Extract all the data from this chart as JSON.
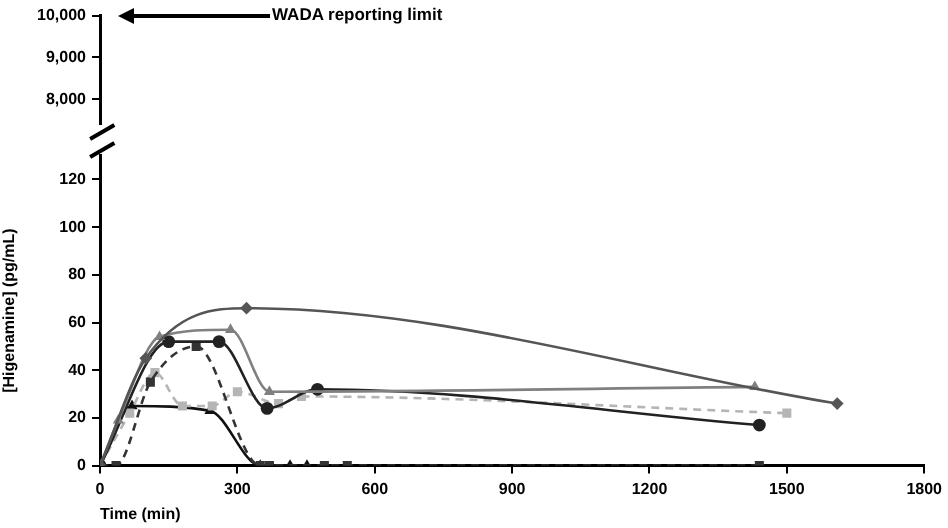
{
  "chart_data": [
    {
      "type": "line",
      "xlim": [
        0,
        1800
      ],
      "ylim": [
        7400,
        10000
      ],
      "yticks": [
        {
          "value": 8000,
          "label": "8,000"
        },
        {
          "value": 9000,
          "label": "9,000"
        },
        {
          "value": 10000,
          "label": "10,000"
        }
      ],
      "tick_labels": "y",
      "grid": false,
      "legend": false,
      "annotations": [
        "WADA reporting limit"
      ]
    },
    {
      "type": "line",
      "xlabel": "Time (min)",
      "ylabel": "[Higenamine] (pg/mL)",
      "xlim": [
        0,
        1800
      ],
      "xticks": [
        0,
        300,
        600,
        900,
        1200,
        1500,
        1800
      ],
      "ylim": [
        0,
        130
      ],
      "yticks": [
        0,
        20,
        40,
        60,
        80,
        100,
        120
      ],
      "grid": false,
      "legend": false,
      "series": [
        {
          "color": "#555555",
          "marker": "diamond",
          "line_style": "solid",
          "x": [
            0,
            100,
            320,
            1610
          ],
          "values": [
            0,
            45,
            66,
            26
          ]
        },
        {
          "color": "#808080",
          "marker": "triangle",
          "line_style": "solid",
          "x": [
            0,
            40,
            130,
            285,
            370,
            1430
          ],
          "values": [
            0,
            19,
            54,
            57,
            31,
            33
          ]
        },
        {
          "color": "#222222",
          "marker": "circle",
          "line_style": "solid",
          "x": [
            0,
            150,
            260,
            365,
            475,
            1440
          ],
          "values": [
            0,
            52,
            52,
            24,
            32,
            17
          ]
        },
        {
          "color": "#333333",
          "marker": "square",
          "line_style": "dashed",
          "x": [
            0,
            35,
            110,
            210,
            350,
            370,
            490,
            540,
            1440
          ],
          "values": [
            0,
            0,
            35,
            50,
            0,
            0,
            0,
            0,
            0
          ]
        },
        {
          "color": "#b5b5b5",
          "marker": "square",
          "line_style": "dashed",
          "x": [
            0,
            65,
            120,
            180,
            245,
            300,
            390,
            440,
            1500
          ],
          "values": [
            0,
            22,
            39,
            25,
            25,
            31,
            26,
            29,
            22
          ]
        },
        {
          "color": "#111111",
          "marker": "triangle",
          "line_style": "solid",
          "x": [
            0,
            70,
            240,
            350,
            415,
            452
          ],
          "values": [
            0,
            25,
            23,
            0,
            0,
            0
          ]
        }
      ]
    }
  ]
}
